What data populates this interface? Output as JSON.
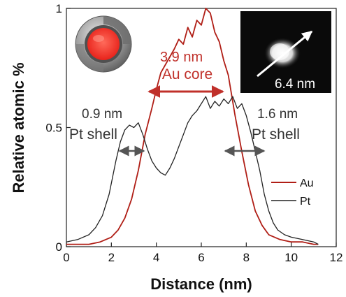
{
  "chart_data": {
    "type": "line",
    "xlabel": "Distance (nm)",
    "ylabel": "Relative atomic %",
    "xlim": [
      0,
      12
    ],
    "ylim": [
      0,
      1
    ],
    "x_ticks": [
      "0",
      "2",
      "4",
      "6",
      "8",
      "10",
      "12"
    ],
    "y_ticks": [
      "0",
      "0.5",
      "1"
    ],
    "grid": false,
    "legend_placement": "right",
    "series": [
      {
        "name": "Au",
        "color": "#b01e16",
        "points": [
          [
            0.0,
            0.01
          ],
          [
            0.5,
            0.01
          ],
          [
            1.0,
            0.01
          ],
          [
            1.5,
            0.02
          ],
          [
            2.0,
            0.04
          ],
          [
            2.3,
            0.07
          ],
          [
            2.6,
            0.12
          ],
          [
            2.9,
            0.2
          ],
          [
            3.2,
            0.32
          ],
          [
            3.5,
            0.47
          ],
          [
            3.8,
            0.58
          ],
          [
            4.0,
            0.66
          ],
          [
            4.2,
            0.73
          ],
          [
            4.5,
            0.78
          ],
          [
            4.8,
            0.83
          ],
          [
            5.0,
            0.87
          ],
          [
            5.2,
            0.85
          ],
          [
            5.4,
            0.92
          ],
          [
            5.6,
            0.88
          ],
          [
            5.8,
            0.95
          ],
          [
            6.0,
            0.93
          ],
          [
            6.2,
            1.0
          ],
          [
            6.4,
            0.98
          ],
          [
            6.6,
            0.9
          ],
          [
            6.8,
            0.86
          ],
          [
            7.0,
            0.78
          ],
          [
            7.2,
            0.72
          ],
          [
            7.5,
            0.55
          ],
          [
            7.8,
            0.4
          ],
          [
            8.1,
            0.26
          ],
          [
            8.4,
            0.15
          ],
          [
            8.7,
            0.09
          ],
          [
            9.0,
            0.05
          ],
          [
            9.5,
            0.03
          ],
          [
            10.0,
            0.02
          ],
          [
            10.5,
            0.02
          ],
          [
            11.0,
            0.01
          ],
          [
            11.2,
            0.01
          ]
        ]
      },
      {
        "name": "Pt",
        "color": "#222222",
        "points": [
          [
            0.0,
            0.02
          ],
          [
            0.5,
            0.03
          ],
          [
            1.0,
            0.05
          ],
          [
            1.3,
            0.08
          ],
          [
            1.6,
            0.13
          ],
          [
            1.9,
            0.22
          ],
          [
            2.2,
            0.36
          ],
          [
            2.4,
            0.44
          ],
          [
            2.6,
            0.49
          ],
          [
            2.8,
            0.51
          ],
          [
            3.0,
            0.5
          ],
          [
            3.2,
            0.52
          ],
          [
            3.4,
            0.47
          ],
          [
            3.6,
            0.41
          ],
          [
            3.8,
            0.36
          ],
          [
            4.0,
            0.33
          ],
          [
            4.2,
            0.31
          ],
          [
            4.4,
            0.3
          ],
          [
            4.6,
            0.33
          ],
          [
            4.8,
            0.37
          ],
          [
            5.0,
            0.42
          ],
          [
            5.2,
            0.47
          ],
          [
            5.4,
            0.52
          ],
          [
            5.6,
            0.55
          ],
          [
            5.8,
            0.57
          ],
          [
            6.0,
            0.6
          ],
          [
            6.2,
            0.63
          ],
          [
            6.4,
            0.58
          ],
          [
            6.6,
            0.61
          ],
          [
            6.8,
            0.59
          ],
          [
            7.0,
            0.62
          ],
          [
            7.2,
            0.6
          ],
          [
            7.4,
            0.63
          ],
          [
            7.6,
            0.58
          ],
          [
            7.8,
            0.6
          ],
          [
            8.0,
            0.55
          ],
          [
            8.2,
            0.48
          ],
          [
            8.4,
            0.4
          ],
          [
            8.6,
            0.32
          ],
          [
            8.8,
            0.22
          ],
          [
            9.0,
            0.15
          ],
          [
            9.2,
            0.1
          ],
          [
            9.4,
            0.07
          ],
          [
            9.7,
            0.05
          ],
          [
            10.0,
            0.04
          ],
          [
            10.5,
            0.03
          ],
          [
            11.0,
            0.02
          ],
          [
            11.2,
            0.01
          ]
        ]
      }
    ],
    "legend": [
      {
        "label": "Au",
        "color": "#b01e16"
      },
      {
        "label": "Pt",
        "color": "#222222"
      }
    ],
    "annotations": {
      "core_size": "3.9 nm",
      "core_label": "Au core",
      "left_shell_size": "0.9 nm",
      "left_shell_label": "Pt shell",
      "right_shell_size": "1.6 nm",
      "right_shell_label": "Pt shell",
      "inset_scale": "6.4 nm"
    }
  }
}
